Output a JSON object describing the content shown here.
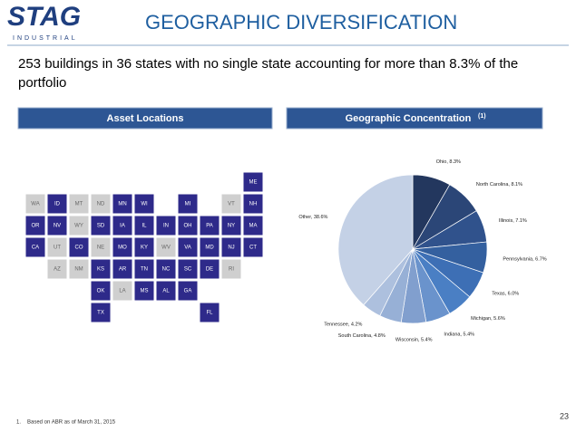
{
  "header": {
    "logo": "STAG",
    "logo_sub": "INDUSTRIAL",
    "title": "GEOGRAPHIC DIVERSIFICATION"
  },
  "subtitle": "253 buildings in 36 states with no single state accounting for more than 8.3% of the portfolio",
  "panels": {
    "left": "Asset Locations",
    "right": "Geographic Concentration",
    "right_note": "(1)"
  },
  "map": {
    "owned_color": "#2e2a8a",
    "other_color": "#cfcfcf",
    "states": [
      {
        "label": "ME",
        "owned": true
      },
      {
        "label": "WA",
        "owned": false
      },
      {
        "label": "ID",
        "owned": true
      },
      {
        "label": "MT",
        "owned": false
      },
      {
        "label": "ND",
        "owned": false
      },
      {
        "label": "MN",
        "owned": true
      },
      {
        "label": "WI",
        "owned": true
      },
      {
        "label": "MI",
        "owned": true
      },
      {
        "label": "VT",
        "owned": false
      },
      {
        "label": "NH",
        "owned": true
      },
      {
        "label": "OR",
        "owned": true
      },
      {
        "label": "NV",
        "owned": true
      },
      {
        "label": "WY",
        "owned": false
      },
      {
        "label": "SD",
        "owned": true
      },
      {
        "label": "IA",
        "owned": true
      },
      {
        "label": "IL",
        "owned": true
      },
      {
        "label": "IN",
        "owned": true
      },
      {
        "label": "OH",
        "owned": true
      },
      {
        "label": "PA",
        "owned": true
      },
      {
        "label": "NY",
        "owned": true
      },
      {
        "label": "MA",
        "owned": true
      },
      {
        "label": "CA",
        "owned": true
      },
      {
        "label": "UT",
        "owned": false
      },
      {
        "label": "CO",
        "owned": true
      },
      {
        "label": "NE",
        "owned": false
      },
      {
        "label": "MO",
        "owned": true
      },
      {
        "label": "KY",
        "owned": true
      },
      {
        "label": "WV",
        "owned": false
      },
      {
        "label": "VA",
        "owned": true
      },
      {
        "label": "MD",
        "owned": true
      },
      {
        "label": "NJ",
        "owned": true
      },
      {
        "label": "CT",
        "owned": true
      },
      {
        "label": "AZ",
        "owned": false
      },
      {
        "label": "NM",
        "owned": false
      },
      {
        "label": "KS",
        "owned": true
      },
      {
        "label": "AR",
        "owned": true
      },
      {
        "label": "TN",
        "owned": true
      },
      {
        "label": "NC",
        "owned": true
      },
      {
        "label": "SC",
        "owned": true
      },
      {
        "label": "DE",
        "owned": true
      },
      {
        "label": "RI",
        "owned": false
      },
      {
        "label": "OK",
        "owned": true
      },
      {
        "label": "LA",
        "owned": false
      },
      {
        "label": "MS",
        "owned": true
      },
      {
        "label": "AL",
        "owned": true
      },
      {
        "label": "GA",
        "owned": true
      },
      {
        "label": "TX",
        "owned": true
      },
      {
        "label": "FL",
        "owned": true
      }
    ]
  },
  "chart_data": {
    "type": "pie",
    "categories": [
      "Ohio",
      "North Carolina",
      "Illinois",
      "Pennsylvania",
      "Texas",
      "Michigan",
      "Indiana",
      "Wisconsin",
      "South Carolina",
      "Tennessee",
      "Other"
    ],
    "values": [
      8.3,
      8.1,
      7.1,
      6.7,
      6.0,
      5.6,
      5.4,
      5.4,
      4.8,
      4.2,
      38.6
    ],
    "value_labels": [
      "Ohio, 8.3%",
      "North Carolina, 8.1%",
      "Illinois, 7.1%",
      "Pennsylvania, 6.7%",
      "Texas, 6.0%",
      "Michigan, 5.6%",
      "Indiana, 5.4%",
      "Wisconsin, 5.4%",
      "South Carolina, 4.8%",
      "Tennessee, 4.2%",
      "Other, 38.6%"
    ],
    "colors": [
      "#23375e",
      "#2b4677",
      "#30528c",
      "#34609f",
      "#3d6fb5",
      "#4a7fc4",
      "#6a93cc",
      "#819fce",
      "#97b0d6",
      "#adc0de",
      "#c4d1e6"
    ]
  },
  "footnote": {
    "number": "1.",
    "text": "Based on ABR as of March 31, 2015"
  },
  "page_number": "23"
}
